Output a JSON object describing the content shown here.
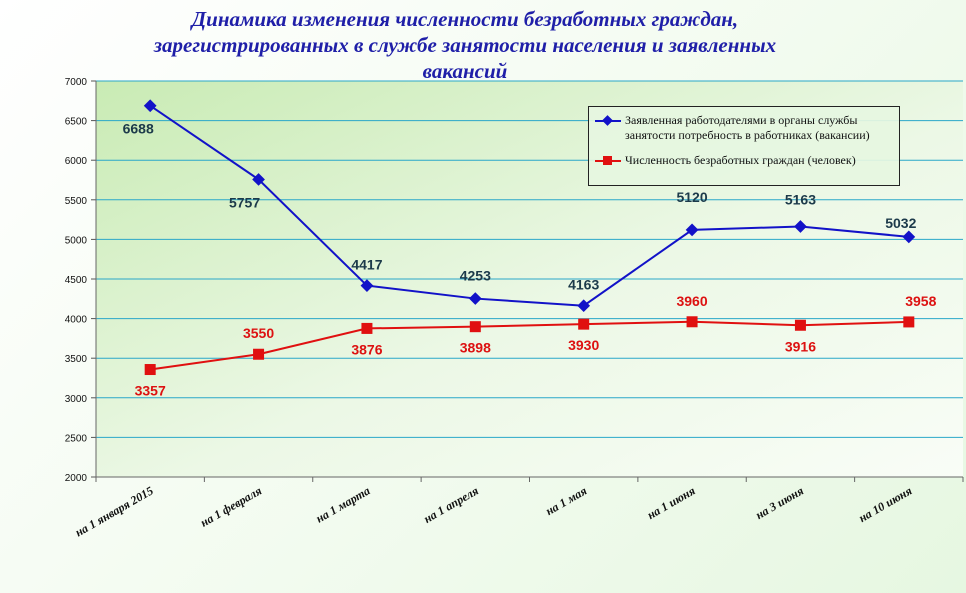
{
  "chart_data": {
    "type": "line",
    "title_lines": [
      "Динамика изменения численности безработных граждан,",
      "зарегистрированных в службе занятости населения и заявленных",
      "вакансий"
    ],
    "categories": [
      "на 1 января 2015",
      "на 1 февраля",
      "на 1 марта",
      "на 1 апреля",
      "на 1 мая",
      "на 1 июня",
      "на 3 июня",
      "на 10 июня"
    ],
    "ylim": [
      2000,
      7000
    ],
    "yticks": [
      2000,
      2500,
      3000,
      3500,
      4000,
      4500,
      5000,
      5500,
      6000,
      6500,
      7000
    ],
    "grid": true,
    "legend_position": "top-right",
    "series": [
      {
        "name": "Заявленная работодателями в органы службы занятости  потребность в работниках (вакансии)",
        "color": "#1212c8",
        "marker": "diamond",
        "values": [
          6688,
          5757,
          4417,
          4253,
          4163,
          5120,
          5163,
          5032
        ],
        "labels": [
          "6688",
          "5757",
          "4417",
          "4253",
          "4163",
          "5120",
          "5163",
          "5032"
        ]
      },
      {
        "name": "Численность безработных граждан (человек)",
        "color": "#e01010",
        "marker": "square",
        "values": [
          3357,
          3550,
          3876,
          3898,
          3930,
          3960,
          3916,
          3958
        ],
        "labels": [
          "3357",
          "3550",
          "3876",
          "3898",
          "3930",
          "3960",
          "3916",
          "3958"
        ]
      }
    ]
  }
}
